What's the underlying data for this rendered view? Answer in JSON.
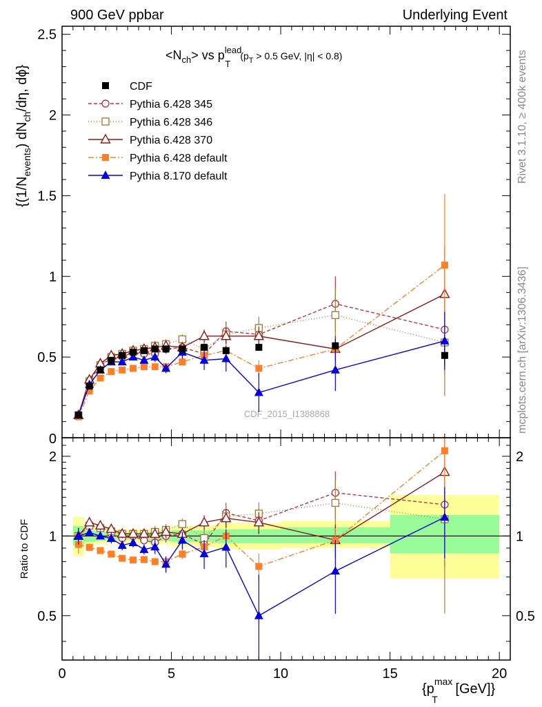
{
  "header": {
    "left": "900 GeV ppbar",
    "right": "Underlying Event",
    "rivet": "Rivet 3.1.10, ≥ 400k events",
    "mcplots": "mcplots.cern.ch [arXiv:1306.3436]",
    "watermark": "CDF_2015_I1388868"
  },
  "chart_data": [
    {
      "type": "scatter",
      "title_main": "<N",
      "title_sub1": "ch",
      "title_mid": "> vs p",
      "title_sup": "lead",
      "title_sub2": "T",
      "title_cut": "(p",
      "title_cut_sub": "T",
      "title_cut_rest": " > 0.5 GeV, |η| < 0.8)",
      "ylabel_parts": [
        "{(1/N",
        "events",
        ") dN",
        "ch",
        "/dη, dϕ}"
      ],
      "xlabel_main": "{p",
      "xlabel_sup": "max",
      "xlabel_sub": "T",
      "xlabel_rest": " [GeV]}",
      "xlim": [
        0,
        20.5
      ],
      "ylim": [
        0,
        2.55
      ],
      "yticks": [
        0.5,
        1,
        1.5,
        2,
        2.5
      ],
      "ytick_labels": [
        "0.5",
        "1",
        "1.5",
        "2",
        "2.5"
      ],
      "y_zero_label": "0",
      "series": [
        {
          "name": "CDF",
          "style": "data",
          "color": "#000000",
          "marker": "square-filled",
          "dash": "none",
          "x": [
            0.75,
            1.25,
            1.75,
            2.25,
            2.75,
            3.25,
            3.75,
            4.25,
            4.75,
            5.5,
            6.5,
            7.5,
            9,
            12.5,
            17.5
          ],
          "y": [
            0.14,
            0.32,
            0.42,
            0.48,
            0.51,
            0.53,
            0.54,
            0.55,
            0.55,
            0.55,
            0.56,
            0.54,
            0.56,
            0.57,
            0.51
          ],
          "err": [
            0.01,
            0.01,
            0.01,
            0.01,
            0.01,
            0.01,
            0.01,
            0.01,
            0.01,
            0.02,
            0.02,
            0.02,
            0.02,
            0.04,
            0.06
          ]
        },
        {
          "name": "Pythia 6.428 345",
          "color": "#b03a48",
          "marker": "circle-open",
          "dash": "5,3",
          "x": [
            0.75,
            1.25,
            1.75,
            2.25,
            2.75,
            3.25,
            3.75,
            4.25,
            4.75,
            5.5,
            6.5,
            7.5,
            9,
            12.5,
            17.5
          ],
          "y": [
            0.14,
            0.35,
            0.45,
            0.49,
            0.5,
            0.53,
            0.52,
            0.52,
            0.55,
            0.56,
            0.52,
            0.66,
            0.64,
            0.83,
            0.67
          ],
          "err": [
            0.01,
            0.01,
            0.02,
            0.02,
            0.02,
            0.02,
            0.02,
            0.03,
            0.03,
            0.03,
            0.05,
            0.06,
            0.07,
            0.17,
            0.28
          ]
        },
        {
          "name": "Pythia 6.428 346",
          "color": "#a67c3d",
          "marker": "square-open",
          "dash": "1,3",
          "x": [
            0.75,
            1.25,
            1.75,
            2.25,
            2.75,
            3.25,
            3.75,
            4.25,
            4.75,
            5.5,
            6.5,
            7.5,
            9,
            12.5,
            17.5
          ],
          "y": [
            0.14,
            0.35,
            0.45,
            0.5,
            0.52,
            0.54,
            0.55,
            0.57,
            0.58,
            0.61,
            0.55,
            0.64,
            0.68,
            0.76,
            0.59
          ],
          "err": [
            0.01,
            0.01,
            0.02,
            0.02,
            0.02,
            0.02,
            0.02,
            0.03,
            0.03,
            0.03,
            0.05,
            0.06,
            0.07,
            0.17,
            0.33
          ]
        },
        {
          "name": "Pythia 6.428 370",
          "color": "#8b1a1a",
          "marker": "triangle-open",
          "dash": "none",
          "x": [
            0.75,
            1.25,
            1.75,
            2.25,
            2.75,
            3.25,
            3.75,
            4.25,
            4.75,
            5.5,
            6.5,
            7.5,
            9,
            12.5,
            17.5
          ],
          "y": [
            0.14,
            0.36,
            0.46,
            0.51,
            0.52,
            0.54,
            0.55,
            0.56,
            0.57,
            0.56,
            0.63,
            0.63,
            0.63,
            0.55,
            0.89
          ],
          "err": [
            0.01,
            0.01,
            0.02,
            0.02,
            0.02,
            0.02,
            0.02,
            0.03,
            0.03,
            0.03,
            0.04,
            0.05,
            0.06,
            0.08,
            0.3
          ]
        },
        {
          "name": "Pythia 6.428 default",
          "color": "#ff7f27",
          "marker": "square-filled",
          "dash": "8,3,2,3",
          "x": [
            0.75,
            1.25,
            1.75,
            2.25,
            2.75,
            3.25,
            3.75,
            4.25,
            4.75,
            5.5,
            6.5,
            7.5,
            9,
            12.5,
            17.5
          ],
          "y": [
            0.13,
            0.29,
            0.37,
            0.41,
            0.42,
            0.43,
            0.44,
            0.44,
            0.44,
            0.47,
            0.51,
            0.54,
            0.43,
            0.55,
            1.07
          ],
          "err": [
            0.01,
            0.01,
            0.01,
            0.01,
            0.01,
            0.01,
            0.01,
            0.01,
            0.02,
            0.02,
            0.03,
            0.04,
            0.05,
            0.06,
            0.44
          ]
        },
        {
          "name": "Pythia 8.170 default",
          "color": "#0000e0",
          "marker": "triangle-filled",
          "dash": "none",
          "x": [
            0.75,
            1.25,
            1.75,
            2.25,
            2.75,
            3.25,
            3.75,
            4.25,
            4.75,
            5.5,
            6.5,
            7.5,
            9,
            12.5,
            17.5
          ],
          "y": [
            0.14,
            0.33,
            0.42,
            0.47,
            0.47,
            0.5,
            0.48,
            0.5,
            0.43,
            0.53,
            0.48,
            0.49,
            0.28,
            0.42,
            0.6
          ],
          "err": [
            0.01,
            0.01,
            0.01,
            0.02,
            0.02,
            0.02,
            0.02,
            0.03,
            0.03,
            0.04,
            0.06,
            0.08,
            0.12,
            0.13,
            0.18
          ]
        }
      ]
    },
    {
      "type": "scatter",
      "ylabel": "Ratio to CDF",
      "xlim": [
        0,
        20.5
      ],
      "ylim": [
        0.34,
        2.35
      ],
      "yscale": "log",
      "xticks": [
        0,
        5,
        10,
        15,
        20
      ],
      "xtick_labels": [
        "0",
        "5",
        "10",
        "15",
        "20"
      ],
      "yticks": [
        0.5,
        1,
        2
      ],
      "ytick_labels": [
        "0.5",
        "1",
        "2"
      ],
      "ratio_series_from": "chart_data.0.series",
      "bands": {
        "x_edges": [
          0.5,
          1.0,
          1.5,
          2.0,
          2.5,
          3.0,
          3.5,
          4.0,
          4.5,
          5.0,
          6.0,
          7.0,
          8.0,
          10.0,
          15.0,
          20.0
        ],
        "green_lo": [
          0.92,
          0.95,
          0.96,
          0.97,
          0.97,
          0.97,
          0.97,
          0.96,
          0.96,
          0.95,
          0.95,
          0.94,
          0.94,
          0.94,
          0.86
        ],
        "green_hi": [
          1.09,
          1.05,
          1.04,
          1.03,
          1.03,
          1.03,
          1.03,
          1.04,
          1.04,
          1.05,
          1.05,
          1.06,
          1.06,
          1.08,
          1.2
        ],
        "yellow_lo": [
          0.84,
          0.92,
          0.93,
          0.94,
          0.94,
          0.94,
          0.94,
          0.93,
          0.93,
          0.91,
          0.91,
          0.89,
          0.89,
          0.9,
          0.69
        ],
        "yellow_hi": [
          1.18,
          1.09,
          1.07,
          1.06,
          1.06,
          1.06,
          1.06,
          1.07,
          1.07,
          1.09,
          1.09,
          1.12,
          1.12,
          1.14,
          1.43
        ],
        "green_color": "#98fb98",
        "yellow_color": "#ffff99"
      }
    }
  ]
}
